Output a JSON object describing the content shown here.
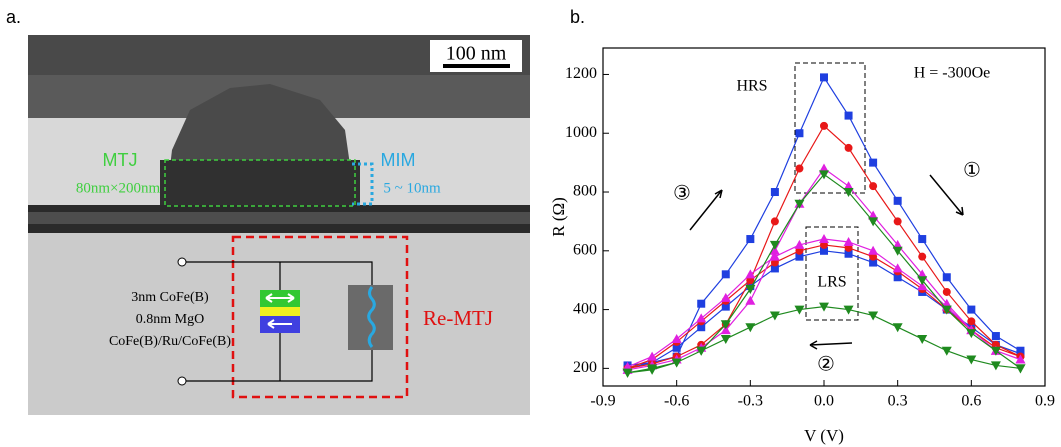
{
  "panel_a": {
    "label": "a.",
    "scale_bar": "100 nm",
    "mtj": "MTJ",
    "mtj_size": "80nm×200nm",
    "mim": "MIM",
    "mim_size": "5 ~ 10nm",
    "stack": [
      "3nm CoFe(B)",
      "0.8nm MgO",
      "CoFe(B)/Ru/CoFe(B)"
    ],
    "re_mtj": "Re-MTJ"
  },
  "chart_data": {
    "type": "line",
    "panel_label": "b.",
    "x_label": "V (V)",
    "y_label": "R (Ω)",
    "annotations": {
      "field": "H = -300Oe",
      "hrs": "HRS",
      "lrs": "LRS",
      "sweep_1": "①",
      "sweep_2": "②",
      "sweep_3": "③"
    },
    "xlim": [
      -0.9,
      0.9
    ],
    "xticks": [
      -0.9,
      -0.6,
      -0.3,
      {
        "value": 0,
        "label": "0.0"
      },
      0.3,
      0.6,
      0.9
    ],
    "ylim": [
      140,
      1290
    ],
    "yticks": [
      200,
      400,
      600,
      800,
      1000,
      1200
    ],
    "x": [
      -0.8,
      -0.7,
      -0.6,
      -0.5,
      -0.4,
      -0.3,
      -0.2,
      -0.1,
      0,
      0.1,
      0.2,
      0.3,
      0.4,
      0.5,
      0.6,
      0.7,
      0.8,
      0.8,
      0.7,
      0.6,
      0.5,
      0.4,
      0.3,
      0.2,
      0.1,
      0,
      -0.1,
      -0.2,
      -0.3,
      -0.4,
      -0.5,
      -0.6,
      -0.7,
      -0.8
    ],
    "series": [
      {
        "color": "#1f3fe0",
        "marker": "square",
        "values": [
          210,
          220,
          240,
          420,
          520,
          640,
          800,
          1000,
          1190,
          1060,
          900,
          770,
          640,
          510,
          400,
          310,
          260,
          250,
          280,
          340,
          400,
          460,
          510,
          560,
          590,
          600,
          580,
          540,
          480,
          410,
          340,
          270,
          220,
          200
        ]
      },
      {
        "color": "#e81818",
        "marker": "circle",
        "values": [
          200,
          215,
          240,
          280,
          350,
          500,
          700,
          880,
          1025,
          950,
          820,
          700,
          580,
          460,
          360,
          280,
          240,
          240,
          270,
          330,
          400,
          470,
          530,
          580,
          610,
          620,
          600,
          560,
          500,
          430,
          360,
          290,
          230,
          200
        ]
      },
      {
        "color": "#e020e0",
        "marker": "triangle-up",
        "values": [
          195,
          210,
          230,
          270,
          330,
          430,
          600,
          760,
          880,
          820,
          720,
          620,
          520,
          420,
          330,
          260,
          230,
          230,
          260,
          330,
          410,
          480,
          540,
          600,
          630,
          640,
          620,
          580,
          520,
          440,
          370,
          300,
          240,
          205
        ]
      },
      {
        "color": "#1f8a1f",
        "marker": "triangle-down",
        "values": [
          185,
          195,
          220,
          260,
          350,
          470,
          620,
          760,
          860,
          800,
          700,
          600,
          500,
          400,
          320,
          260,
          200,
          200,
          210,
          230,
          260,
          300,
          340,
          380,
          400,
          410,
          400,
          380,
          340,
          300,
          260,
          220,
          200,
          185
        ]
      }
    ]
  }
}
